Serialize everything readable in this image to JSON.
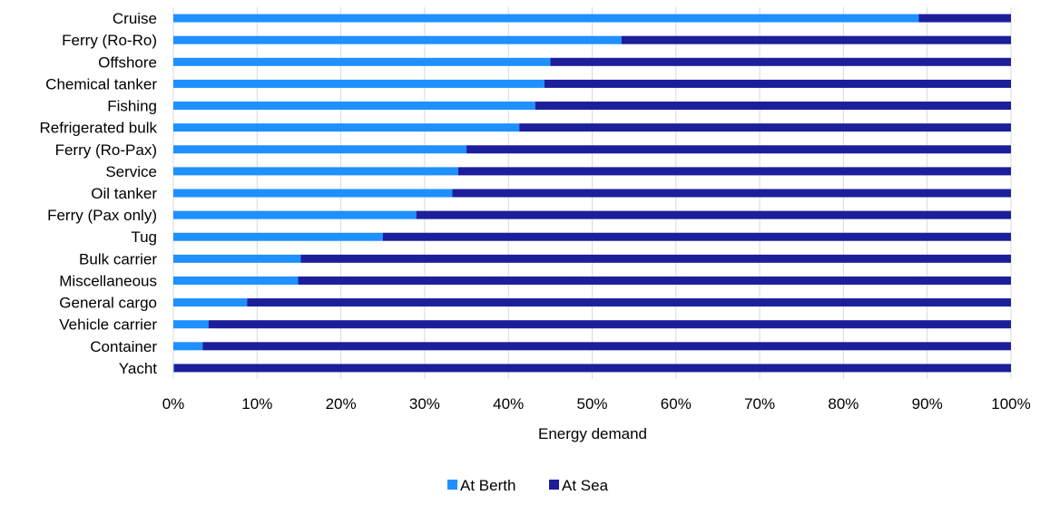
{
  "chart_data": {
    "type": "bar",
    "orientation": "horizontal",
    "stacked": true,
    "categories": [
      "Cruise",
      "Ferry (Ro-Ro)",
      "Offshore",
      "Chemical tanker",
      "Fishing",
      "Refrigerated bulk",
      "Ferry (Ro-Pax)",
      "Service",
      "Oil tanker",
      "Ferry (Pax only)",
      "Tug",
      "Bulk carrier",
      "Miscellaneous",
      "General cargo",
      "Vehicle carrier",
      "Container",
      "Yacht"
    ],
    "series": [
      {
        "name": "At Berth",
        "color": "#1e90ff",
        "values": [
          89,
          53.5,
          45,
          44.3,
          43.2,
          41.3,
          35,
          34,
          33.3,
          29,
          25,
          15.2,
          14.9,
          8.8,
          4.2,
          3.5,
          0.1
        ]
      },
      {
        "name": "At Sea",
        "color": "#1c1f9a",
        "values": [
          11,
          46.5,
          55,
          55.7,
          56.8,
          58.7,
          65,
          66,
          66.7,
          71,
          75,
          84.8,
          85.1,
          91.2,
          95.8,
          96.5,
          99.9
        ]
      }
    ],
    "xlim": [
      0,
      100
    ],
    "x_ticks": [
      "0%",
      "10%",
      "20%",
      "30%",
      "40%",
      "50%",
      "60%",
      "70%",
      "80%",
      "90%",
      "100%"
    ],
    "xlabel": "Energy demand",
    "ylabel": "",
    "title": "",
    "grid": "vertical",
    "legend_position": "bottom"
  }
}
